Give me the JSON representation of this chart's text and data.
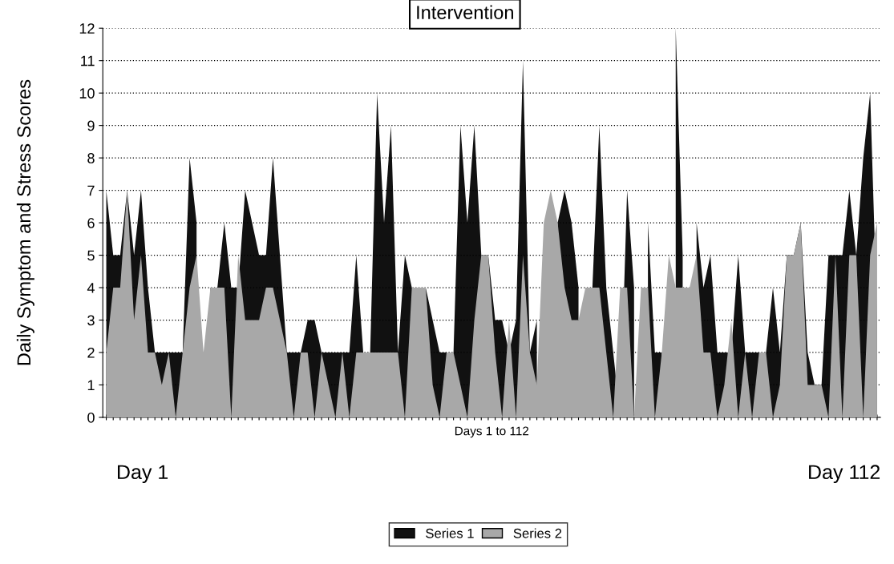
{
  "chart_data": {
    "type": "area",
    "ylabel": "Daily Symptom and Stress Scores",
    "xlabel": "Days 1 to 112",
    "annotations": [
      "Intervention",
      "Day 1",
      "Day 112"
    ],
    "categories": [
      null,
      null,
      null,
      null,
      null,
      null,
      null,
      null,
      null,
      null,
      null,
      null,
      null,
      null,
      null,
      null,
      null,
      null,
      null,
      null,
      null,
      null,
      null,
      null,
      null,
      null,
      null,
      null,
      null,
      null,
      null,
      null,
      null,
      null,
      null,
      null,
      null,
      null,
      null,
      null,
      null,
      null,
      null,
      null,
      null,
      null,
      null,
      null,
      null,
      null,
      null,
      null,
      null,
      null,
      null,
      null,
      null,
      null,
      null,
      null,
      null,
      null,
      null,
      null,
      null,
      null,
      null,
      null,
      null,
      null,
      null,
      null,
      null,
      null,
      null,
      null,
      null,
      null,
      null,
      null,
      null,
      null,
      null,
      null,
      null,
      null,
      null,
      null,
      null,
      null,
      null,
      null,
      null,
      null,
      null,
      null,
      null,
      null,
      null,
      null,
      null,
      null,
      null,
      null,
      null,
      null,
      null,
      null,
      null,
      null,
      null,
      null
    ],
    "series": [
      {
        "name": "Series 1",
        "color": "#111111",
        "values": [
          7,
          5,
          5,
          7,
          5,
          7,
          4,
          2,
          2,
          2,
          2,
          2,
          8,
          6,
          null,
          4,
          4,
          6,
          4,
          4,
          7,
          6,
          5,
          5,
          8,
          5,
          2,
          2,
          2,
          3,
          3,
          2,
          2,
          2,
          2,
          2,
          5,
          2,
          2,
          10,
          6,
          9,
          2,
          5,
          4,
          4,
          4,
          3,
          2,
          2,
          2,
          9,
          6,
          9,
          5,
          5,
          3,
          3,
          2,
          3,
          11,
          2,
          3,
          null,
          null,
          6,
          7,
          6,
          4,
          null,
          4,
          9,
          4,
          2,
          0,
          7,
          4,
          null,
          6,
          2,
          2,
          null,
          12,
          5,
          null,
          6,
          4,
          5,
          2,
          2,
          2,
          5,
          2,
          2,
          2,
          2,
          4,
          2,
          5,
          5,
          6,
          2,
          1,
          1,
          5,
          5,
          5,
          7,
          5,
          8,
          10,
          3
        ]
      },
      {
        "name": "Series 2",
        "color": "#a8a8a8",
        "values": [
          2,
          4,
          4,
          7,
          3,
          5,
          2,
          2,
          1,
          2,
          0,
          2,
          4,
          5,
          2,
          4,
          4,
          4,
          0,
          5,
          3,
          3,
          3,
          4,
          4,
          3,
          2,
          0,
          2,
          2,
          0,
          2,
          1,
          0,
          2,
          0,
          2,
          2,
          2,
          2,
          2,
          2,
          2,
          0,
          4,
          4,
          4,
          1,
          0,
          2,
          2,
          1,
          0,
          3,
          5,
          5,
          2,
          0,
          3,
          0,
          5,
          2,
          1,
          6,
          7,
          6,
          4,
          3,
          3,
          4,
          4,
          4,
          2,
          0,
          4,
          4,
          0,
          4,
          4,
          0,
          2,
          5,
          4,
          4,
          4,
          5,
          2,
          2,
          0,
          1,
          3,
          0,
          2,
          0,
          2,
          2,
          0,
          1,
          5,
          5,
          6,
          1,
          1,
          1,
          0,
          5,
          0,
          5,
          5,
          0,
          5,
          6
        ]
      }
    ],
    "ylim": [
      0,
      12
    ],
    "yticks": [
      0,
      1,
      2,
      3,
      4,
      5,
      6,
      7,
      8,
      9,
      10,
      11,
      12
    ],
    "grid": "y",
    "legend": "bottom"
  }
}
